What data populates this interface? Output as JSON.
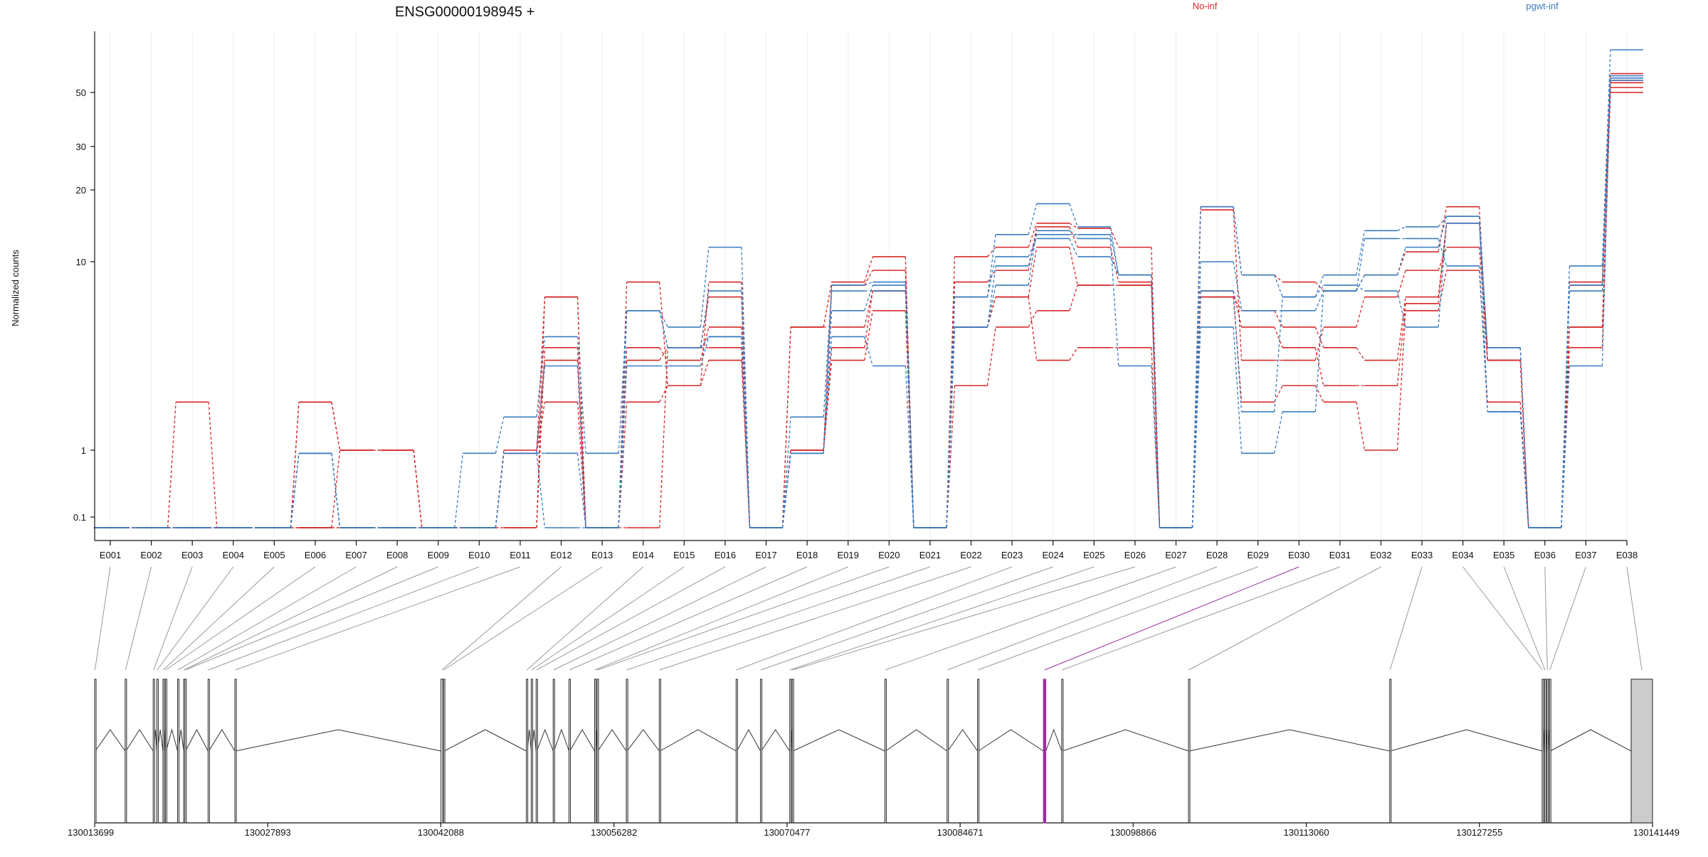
{
  "chart_data": {
    "type": "line",
    "title": "ENSG00000198945 +",
    "ylabel": "Normalized counts",
    "xlabel": "",
    "y_scale": "log",
    "ylim": [
      0.07,
      100
    ],
    "yticks": [
      0.1,
      1,
      10,
      20,
      30,
      50
    ],
    "ytick_labels": [
      "0.1",
      "1",
      "10",
      "20",
      "30",
      "50"
    ],
    "grid": true,
    "legend": [
      {
        "label": "No-inf",
        "color": "#d62728"
      },
      {
        "label": "pgwt-inf",
        "color": "#3a7bbf"
      }
    ],
    "categories": [
      "E001",
      "E002",
      "E003",
      "E004",
      "E005",
      "E006",
      "E007",
      "E008",
      "E009",
      "E010",
      "E011",
      "E012",
      "E013",
      "E014",
      "E015",
      "E016",
      "E017",
      "E018",
      "E019",
      "E020",
      "E021",
      "E022",
      "E023",
      "E024",
      "E025",
      "E026",
      "E027",
      "E028",
      "E029",
      "E030",
      "E031",
      "E032",
      "E033",
      "E034",
      "E035",
      "E036",
      "E037",
      "E038"
    ],
    "series": [
      {
        "group": "No-inf",
        "color": "#d62728",
        "values": [
          0.08,
          0.08,
          1.8,
          0.08,
          0.08,
          1.8,
          1.0,
          1.0,
          0.08,
          0.08,
          0.9,
          6.5,
          0.08,
          7.8,
          2.2,
          7.8,
          0.08,
          4.5,
          7.8,
          10.5,
          0.08,
          10.5,
          11.5,
          14.5,
          13.8,
          11.5,
          0.08,
          17.0,
          8.5,
          7.8,
          7.0,
          8.5,
          11.0,
          17.0,
          3.0,
          0.08,
          7.8,
          58
        ]
      },
      {
        "group": "No-inf",
        "color": "#d62728",
        "values": [
          0.08,
          0.08,
          0.08,
          0.08,
          0.08,
          1.8,
          1.0,
          1.0,
          0.08,
          0.08,
          1.0,
          3.0,
          0.08,
          3.0,
          3.5,
          3.5,
          0.08,
          1.0,
          7.5,
          9.0,
          0.08,
          4.5,
          6.5,
          11.5,
          7.5,
          7.5,
          0.08,
          16.5,
          3.0,
          3.0,
          4.5,
          6.5,
          9.0,
          11.5,
          3.0,
          0.08,
          4.5,
          52
        ]
      },
      {
        "group": "No-inf",
        "color": "#d62728",
        "values": [
          0.08,
          0.08,
          0.08,
          0.08,
          0.08,
          0.08,
          1.0,
          1.0,
          0.08,
          0.08,
          0.9,
          1.8,
          0.08,
          1.8,
          2.2,
          3.0,
          0.08,
          1.0,
          3.0,
          5.5,
          0.08,
          2.2,
          4.5,
          5.5,
          7.5,
          7.5,
          0.08,
          6.5,
          5.5,
          4.5,
          3.5,
          3.0,
          6.5,
          14.5,
          3.0,
          0.08,
          4.5,
          50
        ]
      },
      {
        "group": "No-inf",
        "color": "#d62728",
        "values": [
          0.08,
          0.08,
          0.08,
          0.08,
          0.08,
          0.08,
          0.08,
          0.08,
          0.08,
          0.08,
          0.08,
          3.5,
          0.08,
          0.08,
          3.5,
          6.5,
          0.08,
          4.5,
          4.5,
          7.0,
          0.08,
          7.8,
          9.0,
          14.0,
          11.5,
          7.8,
          0.08,
          6.5,
          1.8,
          2.2,
          1.8,
          1.0,
          5.5,
          9.0,
          1.8,
          0.08,
          7.5,
          54
        ]
      },
      {
        "group": "No-inf",
        "color": "#d62728",
        "values": [
          0.08,
          0.08,
          0.08,
          0.08,
          0.08,
          0.08,
          0.08,
          0.08,
          0.08,
          0.08,
          0.08,
          6.5,
          0.08,
          3.5,
          3.0,
          4.5,
          0.08,
          1.0,
          3.5,
          7.0,
          0.08,
          4.5,
          6.5,
          3.0,
          3.5,
          3.5,
          0.08,
          7.0,
          4.5,
          3.5,
          2.2,
          2.2,
          6.0,
          14.5,
          3.5,
          0.08,
          3.5,
          55
        ]
      },
      {
        "group": "pgwt-inf",
        "color": "#3a7bbf",
        "values": [
          0.08,
          0.08,
          0.08,
          0.08,
          0.08,
          0.9,
          0.08,
          0.08,
          0.08,
          0.9,
          1.5,
          4.0,
          0.9,
          5.5,
          4.5,
          11.5,
          0.08,
          1.5,
          7.5,
          7.8,
          0.08,
          6.5,
          13.0,
          17.5,
          14.0,
          8.5,
          0.08,
          17.0,
          8.5,
          6.5,
          8.5,
          13.5,
          14.0,
          15.5,
          3.5,
          0.08,
          9.5,
          70
        ]
      },
      {
        "group": "pgwt-inf",
        "color": "#3a7bbf",
        "values": [
          0.08,
          0.08,
          0.08,
          0.08,
          0.08,
          0.9,
          0.08,
          0.08,
          0.08,
          0.08,
          0.9,
          2.8,
          0.08,
          2.8,
          2.8,
          4.0,
          0.08,
          0.9,
          4.0,
          2.8,
          0.08,
          4.5,
          7.5,
          13.5,
          12.5,
          2.8,
          0.08,
          10.0,
          5.5,
          5.5,
          7.0,
          8.5,
          11.5,
          15.5,
          1.6,
          0.08,
          2.8,
          56
        ]
      },
      {
        "group": "pgwt-inf",
        "color": "#3a7bbf",
        "values": [
          0.08,
          0.08,
          0.08,
          0.08,
          0.08,
          0.9,
          0.08,
          0.08,
          0.08,
          0.08,
          0.9,
          0.9,
          0.08,
          5.5,
          3.5,
          4.0,
          0.08,
          0.9,
          5.5,
          7.5,
          0.08,
          6.5,
          10.5,
          12.5,
          10.5,
          8.5,
          0.08,
          4.5,
          0.9,
          1.6,
          7.0,
          12.5,
          12.5,
          9.5,
          1.6,
          0.08,
          7.5,
          57
        ]
      },
      {
        "group": "pgwt-inf",
        "color": "#3a7bbf",
        "values": [
          0.08,
          0.08,
          0.08,
          0.08,
          0.08,
          0.9,
          0.08,
          0.08,
          0.08,
          0.08,
          0.9,
          0.08,
          0.08,
          5.5,
          3.5,
          7.0,
          0.08,
          0.9,
          7.0,
          7.0,
          0.08,
          4.5,
          9.5,
          13.0,
          13.0,
          8.5,
          0.08,
          7.0,
          1.6,
          6.5,
          7.5,
          7.0,
          4.5,
          14.5,
          3.5,
          0.08,
          7.0,
          55
        ]
      }
    ],
    "gene_model": {
      "coord_ticks": [
        "130013699",
        "130027893",
        "130042088",
        "130056282",
        "130070477",
        "130084671",
        "130098866",
        "130113060",
        "130127255",
        "130141449"
      ],
      "exons": [
        {
          "id": "E001",
          "start": 130013700,
          "end": 130013750
        },
        {
          "id": "E002",
          "start": 130016200,
          "end": 130016260
        },
        {
          "id": "E003",
          "start": 130018500,
          "end": 130018560
        },
        {
          "id": "E004",
          "start": 130018800,
          "end": 130018850
        },
        {
          "id": "E005",
          "start": 130019300,
          "end": 130019350
        },
        {
          "id": "E006",
          "start": 130019500,
          "end": 130019560
        },
        {
          "id": "E007",
          "start": 130020500,
          "end": 130020550
        },
        {
          "id": "E008",
          "start": 130021000,
          "end": 130021060
        },
        {
          "id": "E009",
          "start": 130021100,
          "end": 130021150
        },
        {
          "id": "E010",
          "start": 130023000,
          "end": 130023060
        },
        {
          "id": "E011",
          "start": 130025200,
          "end": 130025260
        },
        {
          "id": "E012",
          "start": 130042100,
          "end": 130042250
        },
        {
          "id": "E013",
          "start": 130042300,
          "end": 130042360
        },
        {
          "id": "E014",
          "start": 130049100,
          "end": 130049180
        },
        {
          "id": "E015",
          "start": 130049500,
          "end": 130049560
        },
        {
          "id": "E016",
          "start": 130049900,
          "end": 130049960
        },
        {
          "id": "E017",
          "start": 130051300,
          "end": 130051360
        },
        {
          "id": "E018",
          "start": 130052600,
          "end": 130052660
        },
        {
          "id": "E019",
          "start": 130054700,
          "end": 130054760
        },
        {
          "id": "E020",
          "start": 130054900,
          "end": 130054960
        },
        {
          "id": "E021",
          "start": 130057300,
          "end": 130057360
        },
        {
          "id": "E022",
          "start": 130060000,
          "end": 130060060
        },
        {
          "id": "E023",
          "start": 130066300,
          "end": 130066360
        },
        {
          "id": "E024",
          "start": 130068300,
          "end": 130068360
        },
        {
          "id": "E025",
          "start": 130070700,
          "end": 130070760
        },
        {
          "id": "E026",
          "start": 130070900,
          "end": 130070960
        },
        {
          "id": "E027",
          "start": 130078500,
          "end": 130078560
        },
        {
          "id": "E028",
          "start": 130083600,
          "end": 130083660
        },
        {
          "id": "E029",
          "start": 130086100,
          "end": 130086160
        },
        {
          "id": "E030",
          "start": 130091500,
          "end": 130091700
        },
        {
          "id": "E031",
          "start": 130093000,
          "end": 130093060
        },
        {
          "id": "E032",
          "start": 130103400,
          "end": 130103460
        },
        {
          "id": "E033",
          "start": 130119900,
          "end": 130119960
        },
        {
          "id": "E034",
          "start": 130132400,
          "end": 130132460
        },
        {
          "id": "E035",
          "start": 130132600,
          "end": 130132660
        },
        {
          "id": "E036",
          "start": 130132800,
          "end": 130132860
        },
        {
          "id": "E037",
          "start": 130133000,
          "end": 130133060
        },
        {
          "id": "E038",
          "start": 130139700,
          "end": 130141449
        }
      ],
      "highlighted_exon": "E030",
      "highlight_color": "#9b30a0",
      "last_exon_fill": "#cccccc"
    }
  }
}
